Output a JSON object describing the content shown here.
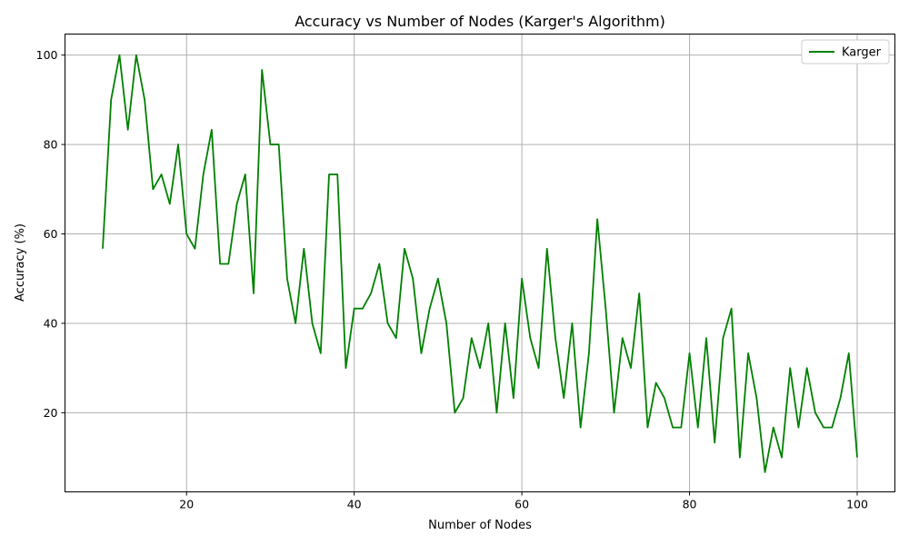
{
  "chart_data": {
    "type": "line",
    "title": "Accuracy vs Number of Nodes (Karger's Algorithm)",
    "xlabel": "Number of Nodes",
    "ylabel": "Accuracy (%)",
    "xlim": [
      5.5,
      104.5
    ],
    "ylim": [
      2.3,
      104.7
    ],
    "xticks": [
      20,
      40,
      60,
      80,
      100
    ],
    "yticks": [
      20,
      40,
      60,
      80,
      100
    ],
    "grid": true,
    "legend_position": "top-right",
    "series": [
      {
        "name": "Karger",
        "color": "#008000",
        "x": [
          10,
          11,
          12,
          13,
          14,
          15,
          16,
          17,
          18,
          19,
          20,
          21,
          22,
          23,
          24,
          25,
          26,
          27,
          28,
          29,
          30,
          31,
          32,
          33,
          34,
          35,
          36,
          37,
          38,
          39,
          40,
          41,
          42,
          43,
          44,
          45,
          46,
          47,
          48,
          49,
          50,
          51,
          52,
          53,
          54,
          55,
          56,
          57,
          58,
          59,
          60,
          61,
          62,
          63,
          64,
          65,
          66,
          67,
          68,
          69,
          70,
          71,
          72,
          73,
          74,
          75,
          76,
          77,
          78,
          79,
          80,
          81,
          82,
          83,
          84,
          85,
          86,
          87,
          88,
          89,
          90,
          91,
          92,
          93,
          94,
          95,
          96,
          97,
          98,
          99,
          100
        ],
        "values": [
          56.7,
          90,
          100,
          83.3,
          100,
          90,
          70,
          73.3,
          66.7,
          80,
          60,
          56.7,
          73.3,
          83.3,
          53.3,
          53.3,
          66.7,
          73.3,
          46.7,
          96.7,
          80,
          80,
          50,
          40,
          56.7,
          40,
          33.3,
          73.3,
          73.3,
          30,
          43.3,
          43.3,
          46.7,
          53.3,
          40,
          36.7,
          56.7,
          50,
          33.3,
          43.3,
          50,
          40,
          20,
          23.3,
          36.7,
          30,
          40,
          20,
          40,
          23.3,
          50,
          36.7,
          30,
          56.7,
          36.7,
          23.3,
          40,
          16.7,
          33.3,
          63.3,
          43.3,
          20,
          36.7,
          30,
          46.7,
          16.7,
          26.7,
          23.3,
          16.7,
          16.7,
          33.3,
          16.7,
          36.7,
          13.3,
          36.7,
          43.3,
          10,
          33.3,
          23.3,
          6.7,
          16.7,
          10,
          30,
          16.7,
          30,
          20,
          16.7,
          16.7,
          23.3,
          33.3,
          10
        ]
      }
    ]
  }
}
